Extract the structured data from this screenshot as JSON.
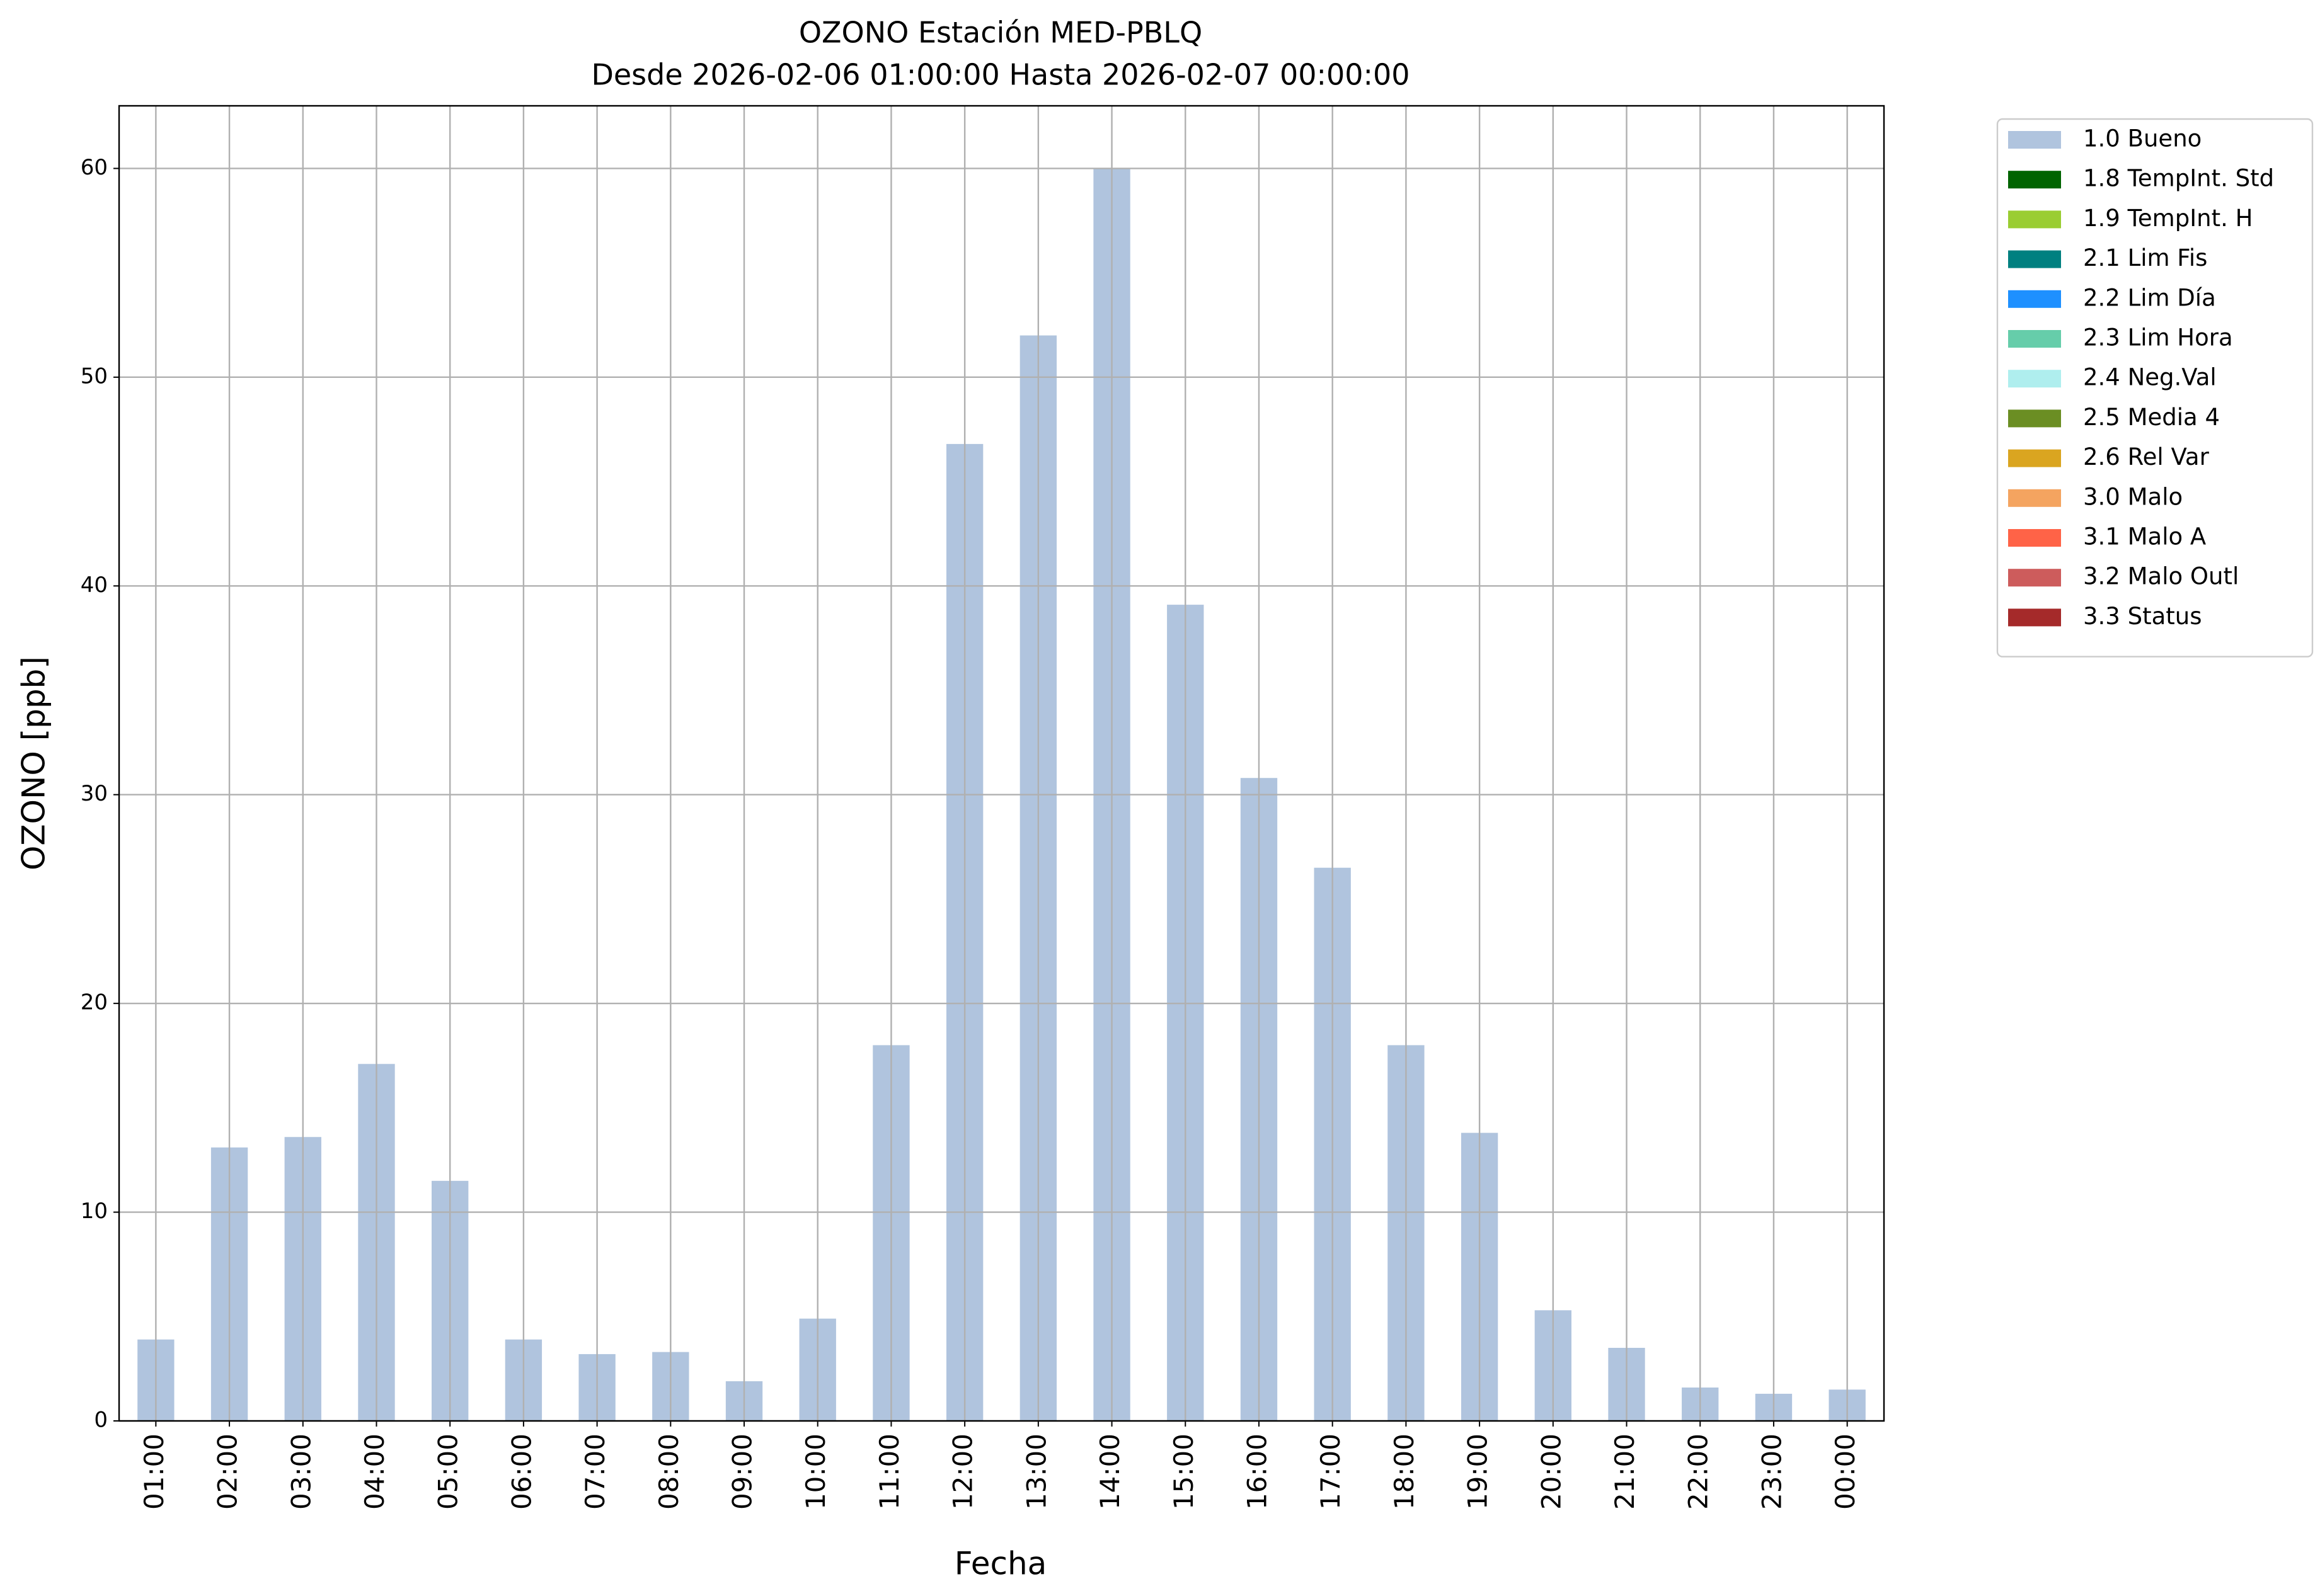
{
  "chart_data": {
    "type": "bar",
    "title": "OZONO Estación MED-PBLQ",
    "subtitle": "Desde 2026-02-06 01:00:00 Hasta 2026-02-07 00:00:00",
    "x_label": "Fecha",
    "y_label": "OZONO [ppb]",
    "categories": [
      "01:00",
      "02:00",
      "03:00",
      "04:00",
      "05:00",
      "06:00",
      "07:00",
      "08:00",
      "09:00",
      "10:00",
      "11:00",
      "12:00",
      "13:00",
      "14:00",
      "15:00",
      "16:00",
      "17:00",
      "18:00",
      "19:00",
      "20:00",
      "21:00",
      "22:00",
      "23:00",
      "00:00"
    ],
    "series": [
      {
        "name": "1.0 Bueno",
        "color": "#b0c4de",
        "values": [
          3.9,
          13.1,
          13.6,
          17.1,
          11.5,
          3.9,
          3.2,
          3.3,
          1.9,
          4.9,
          18.0,
          46.8,
          52.0,
          60.0,
          39.1,
          30.8,
          26.5,
          18.0,
          13.8,
          5.3,
          3.5,
          1.6,
          1.3,
          1.5
        ]
      },
      {
        "name": "1.8 TempInt. Std",
        "color": "#006400"
      },
      {
        "name": "1.9 TempInt. H",
        "color": "#9acd32"
      },
      {
        "name": "2.1 Lim Fis",
        "color": "#008080"
      },
      {
        "name": "2.2 Lim Día",
        "color": "#1e90ff"
      },
      {
        "name": "2.3 Lim Hora",
        "color": "#66cdaa"
      },
      {
        "name": "2.4 Neg.Val",
        "color": "#afeeee"
      },
      {
        "name": "2.5 Media 4",
        "color": "#6b8e23"
      },
      {
        "name": "2.6 Rel Var",
        "color": "#daa520"
      },
      {
        "name": "3.0 Malo",
        "color": "#f4a460"
      },
      {
        "name": "3.1 Malo A",
        "color": "#ff6347"
      },
      {
        "name": "3.2 Malo Outl",
        "color": "#cd5c5c"
      },
      {
        "name": "3.3 Status",
        "color": "#a52a2a"
      }
    ],
    "ylim": [
      0,
      63
    ],
    "yticks": [
      0,
      10,
      20,
      30,
      40,
      50,
      60
    ],
    "grid": true,
    "legend": "outside upper right"
  }
}
